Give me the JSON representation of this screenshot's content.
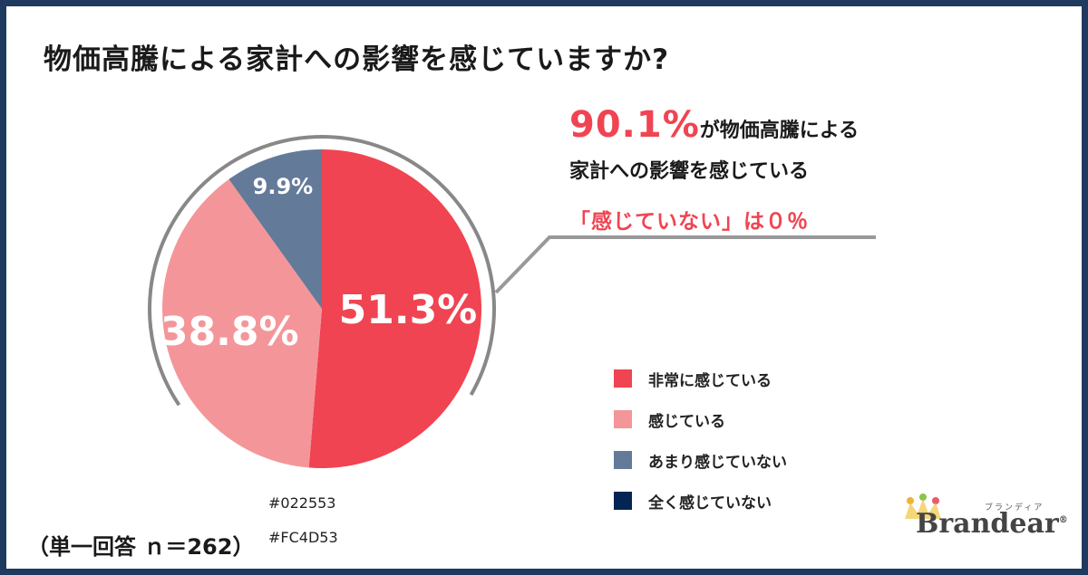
{
  "title": "物価高騰による家計への影響を感じていますか?",
  "callout": {
    "highlight": "90.1%",
    "line1_rest": "が物価高騰による",
    "line2": "家計への影響を感じている",
    "line3": "「感じていない」は０％"
  },
  "chart_data": {
    "type": "pie",
    "title": "物価高騰による家計への影響を感じていますか?",
    "slices": [
      {
        "name": "非常に感じている",
        "value": 51.3,
        "label": "51.3%",
        "color": "#F04452"
      },
      {
        "name": "感じている",
        "value": 38.8,
        "label": "38.8%",
        "color": "#F49699"
      },
      {
        "name": "あまり感じていない",
        "value": 9.9,
        "label": "9.9%",
        "color": "#647A99"
      },
      {
        "name": "全く感じていない",
        "value": 0,
        "label": "",
        "color": "#022553"
      }
    ],
    "legend_position": "right"
  },
  "legend": [
    {
      "label": "非常に感じている",
      "color": "#F04452"
    },
    {
      "label": "感じている",
      "color": "#F49699"
    },
    {
      "label": "あまり感じていない",
      "color": "#647A99"
    },
    {
      "label": "全く感じていない",
      "color": "#022553"
    }
  ],
  "notes": {
    "color1": "#022553",
    "color2": "#FC4D53"
  },
  "sample_size": "（単一回答 ｎ＝262）",
  "brand": {
    "name": "Brandear",
    "kana": "ブランディア",
    "registered": "®"
  },
  "colors": {
    "frame": "#1e3a5f",
    "accent": "#F04452"
  }
}
